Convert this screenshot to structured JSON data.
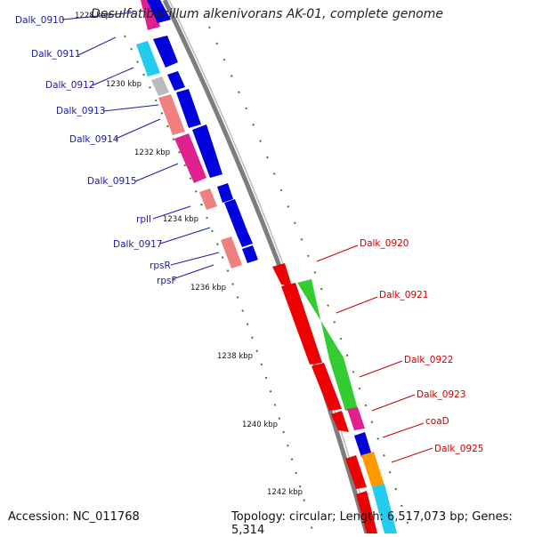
{
  "title": "Desulfatibacillum alkenivorans AK-01, complete genome",
  "footer": {
    "accession": "Accession: NC_011768",
    "summary": "Topology: circular; Length: 6,517,073 bp; Genes: 5,314"
  },
  "colors": {
    "backbone": "#7d7d7d",
    "label_left": "#1a1aaa",
    "label_right": "#cc0000",
    "tick": "#228b22"
  },
  "ticks": [
    "1228 kbp",
    "1230 kbp",
    "1232 kbp",
    "1234 kbp",
    "1236 kbp",
    "1238 kbp",
    "1240 kbp",
    "1242 kbp"
  ],
  "genes_left": [
    "Dalk_0910",
    "Dalk_0911",
    "Dalk_0912",
    "Dalk_0913",
    "Dalk_0914",
    "Dalk_0915",
    "rplI",
    "Dalk_0917",
    "rpsR",
    "rpsF"
  ],
  "genes_right": [
    "Dalk_0920",
    "Dalk_0921",
    "Dalk_0922",
    "Dalk_0923",
    "coaD",
    "Dalk_0925"
  ]
}
